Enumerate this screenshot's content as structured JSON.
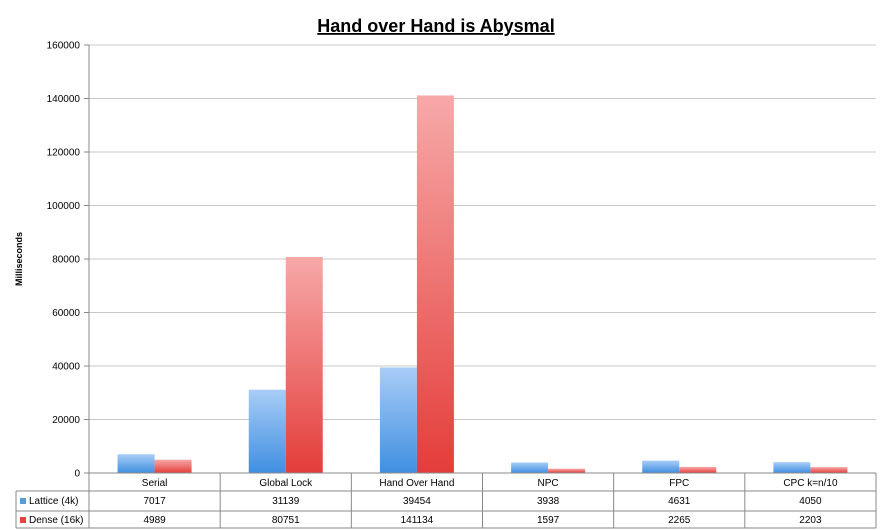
{
  "chart_data": {
    "type": "bar",
    "title": "Hand over Hand is Abysmal",
    "xlabel": "",
    "ylabel": "Milliseconds",
    "ylim": [
      0,
      160000
    ],
    "yticks": [
      0,
      20000,
      40000,
      60000,
      80000,
      100000,
      120000,
      140000,
      160000
    ],
    "grid": true,
    "legend": "bottom-left, inside data table",
    "categories": [
      "Serial",
      "Global Lock",
      "Hand Over Hand",
      "NPC",
      "FPC",
      "CPC k=n/10"
    ],
    "series": [
      {
        "name": "Lattice (4k)",
        "color": "#5b9bd5",
        "values": [
          7017,
          31139,
          39454,
          3938,
          4631,
          4050
        ]
      },
      {
        "name": "Dense (16k)",
        "color": "#e8413f",
        "values": [
          4989,
          80751,
          141134,
          1597,
          2265,
          2203
        ]
      }
    ]
  }
}
